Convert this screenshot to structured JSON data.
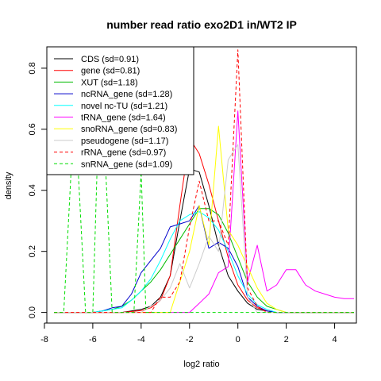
{
  "chart_data": {
    "type": "line",
    "title": "number read ratio exo2D1 in/WT2 IP",
    "xlabel": "log2 ratio",
    "ylabel": "density",
    "xlim": [
      -8,
      5
    ],
    "ylim": [
      0,
      0.87
    ],
    "xticks": [
      -8,
      -6,
      -4,
      -2,
      0,
      2,
      4
    ],
    "yticks": [
      0.0,
      0.2,
      0.4,
      0.6,
      0.8
    ],
    "xtick_labels": [
      "-8",
      "-6",
      "-4",
      "-2",
      "0",
      "2",
      "4"
    ],
    "ytick_labels": [
      "0.0",
      "0.2",
      "0.4",
      "0.6",
      "0.8"
    ],
    "legend_position": "top-left",
    "series": [
      {
        "name": "CDS (sd=0.91)",
        "color": "#000000",
        "dash": "solid",
        "x": [
          -7.6,
          -7.2,
          -6.8,
          -6.4,
          -6.0,
          -5.6,
          -5.2,
          -4.8,
          -4.4,
          -4.0,
          -3.6,
          -3.2,
          -2.8,
          -2.4,
          -2.0,
          -1.6,
          -1.2,
          -0.8,
          -0.4,
          0.0,
          0.4,
          0.8,
          1.2,
          1.6,
          2.0,
          2.4,
          2.8,
          3.2,
          3.6,
          4.0,
          4.4,
          4.8
        ],
        "y": [
          0,
          0,
          0,
          0,
          0,
          0,
          0,
          0,
          0.005,
          0.01,
          0.02,
          0.05,
          0.12,
          0.3,
          0.47,
          0.46,
          0.35,
          0.22,
          0.12,
          0.07,
          0.03,
          0.01,
          0.005,
          0,
          0,
          0,
          0,
          0,
          0,
          0,
          0,
          0
        ]
      },
      {
        "name": "gene (sd=0.81)",
        "color": "#ff0000",
        "dash": "solid",
        "x": [
          -7.6,
          -7.2,
          -6.8,
          -6.4,
          -6.0,
          -5.6,
          -5.2,
          -4.8,
          -4.4,
          -4.0,
          -3.6,
          -3.2,
          -2.8,
          -2.4,
          -2.0,
          -1.6,
          -1.2,
          -0.8,
          -0.4,
          0.0,
          0.4,
          0.8,
          1.2,
          1.6,
          2.0,
          2.4,
          2.8,
          3.2,
          3.6,
          4.0,
          4.4,
          4.8
        ],
        "y": [
          0,
          0,
          0,
          0,
          0,
          0,
          0,
          0,
          0.003,
          0.006,
          0.015,
          0.04,
          0.12,
          0.35,
          0.57,
          0.52,
          0.42,
          0.3,
          0.18,
          0.09,
          0.04,
          0.015,
          0.005,
          0,
          0,
          0,
          0,
          0,
          0,
          0,
          0,
          0
        ]
      },
      {
        "name": "XUT (sd=1.18)",
        "color": "#00bb00",
        "dash": "solid",
        "x": [
          -7.6,
          -7.2,
          -6.8,
          -6.4,
          -6.0,
          -5.6,
          -5.2,
          -4.8,
          -4.4,
          -4.0,
          -3.6,
          -3.2,
          -2.8,
          -2.4,
          -2.0,
          -1.6,
          -1.2,
          -0.8,
          -0.4,
          0.0,
          0.4,
          0.8,
          1.2,
          1.6,
          2.0,
          2.4,
          2.8,
          3.2,
          3.6,
          4.0,
          4.4,
          4.8
        ],
        "y": [
          0,
          0,
          0,
          0,
          0,
          0.005,
          0.01,
          0.02,
          0.04,
          0.07,
          0.1,
          0.14,
          0.19,
          0.24,
          0.29,
          0.34,
          0.34,
          0.32,
          0.26,
          0.18,
          0.1,
          0.05,
          0.02,
          0.01,
          0,
          0,
          0,
          0,
          0,
          0,
          0,
          0
        ]
      },
      {
        "name": "ncRNA_gene (sd=1.28)",
        "color": "#0000cc",
        "dash": "solid",
        "x": [
          -7.6,
          -7.2,
          -6.8,
          -6.4,
          -6.0,
          -5.6,
          -5.2,
          -4.8,
          -4.4,
          -4.0,
          -3.6,
          -3.2,
          -2.8,
          -2.4,
          -2.0,
          -1.6,
          -1.2,
          -0.8,
          -0.4,
          0.0,
          0.4,
          0.8,
          1.2,
          1.6,
          2.0,
          2.4,
          2.8,
          3.2,
          3.6,
          4.0,
          4.4,
          4.8
        ],
        "y": [
          0,
          0,
          0,
          0,
          0,
          0.005,
          0.015,
          0.02,
          0.06,
          0.13,
          0.17,
          0.21,
          0.28,
          0.29,
          0.3,
          0.35,
          0.21,
          0.23,
          0.21,
          0.15,
          0.05,
          0.02,
          0.005,
          0,
          0,
          0,
          0,
          0,
          0,
          0,
          0,
          0
        ]
      },
      {
        "name": "novel nc-TU (sd=1.21)",
        "color": "#00ffff",
        "dash": "solid",
        "x": [
          -7.6,
          -7.2,
          -6.8,
          -6.4,
          -6.0,
          -5.6,
          -5.2,
          -4.8,
          -4.4,
          -4.0,
          -3.6,
          -3.2,
          -2.8,
          -2.4,
          -2.0,
          -1.6,
          -1.2,
          -0.8,
          -0.4,
          0.0,
          0.4,
          0.8,
          1.2,
          1.6,
          2.0,
          2.4,
          2.8,
          3.2,
          3.6,
          4.0,
          4.4,
          4.8
        ],
        "y": [
          0,
          0,
          0,
          0,
          0,
          0.005,
          0.01,
          0.015,
          0.04,
          0.07,
          0.11,
          0.17,
          0.24,
          0.3,
          0.32,
          0.33,
          0.31,
          0.27,
          0.2,
          0.12,
          0.06,
          0.025,
          0.01,
          0,
          0,
          0,
          0,
          0,
          0,
          0,
          0,
          0
        ]
      },
      {
        "name": "tRNA_gene (sd=1.64)",
        "color": "#ff00ff",
        "dash": "solid",
        "x": [
          -7.6,
          -7.2,
          -6.8,
          -6.4,
          -6.0,
          -5.6,
          -5.2,
          -4.8,
          -4.4,
          -4.0,
          -3.6,
          -3.2,
          -2.8,
          -2.4,
          -2.0,
          -1.6,
          -1.2,
          -0.8,
          -0.4,
          0.0,
          0.4,
          0.8,
          1.2,
          1.6,
          2.0,
          2.4,
          2.8,
          3.2,
          3.6,
          4.0,
          4.4,
          4.8
        ],
        "y": [
          0,
          0,
          0,
          0,
          0,
          0,
          0,
          0,
          0,
          0,
          0,
          0,
          0,
          0,
          0,
          0.03,
          0.06,
          0.13,
          0.15,
          0.66,
          0.1,
          0.22,
          0.07,
          0.09,
          0.14,
          0.14,
          0.09,
          0.07,
          0.06,
          0.05,
          0.045,
          0.045
        ]
      },
      {
        "name": "snoRNA_gene (sd=0.83)",
        "color": "#ffff00",
        "dash": "solid",
        "x": [
          -7.6,
          -7.2,
          -6.8,
          -6.4,
          -6.0,
          -5.6,
          -5.2,
          -4.8,
          -4.4,
          -4.0,
          -3.6,
          -3.2,
          -2.8,
          -2.4,
          -2.0,
          -1.6,
          -1.2,
          -0.8,
          -0.4,
          0.0,
          0.4,
          0.8,
          1.2,
          1.6,
          2.0,
          2.4,
          2.8,
          3.2,
          3.6,
          4.0,
          4.4,
          4.8
        ],
        "y": [
          0,
          0,
          0,
          0,
          0,
          0,
          0,
          0,
          0,
          0,
          0,
          0,
          0,
          0.1,
          0.2,
          0.35,
          0.22,
          0.61,
          0.27,
          0.22,
          0.15,
          0.08,
          0.03,
          0.01,
          0,
          0,
          0,
          0,
          0,
          0,
          0,
          0
        ]
      },
      {
        "name": "pseudogene (sd=1.17)",
        "color": "#cccccc",
        "dash": "solid",
        "x": [
          -7.6,
          -7.2,
          -6.8,
          -6.4,
          -6.0,
          -5.6,
          -5.2,
          -4.8,
          -4.4,
          -4.0,
          -3.6,
          -3.2,
          -2.8,
          -2.4,
          -2.0,
          -1.6,
          -1.2,
          -0.8,
          -0.4,
          0.0,
          0.4,
          0.8,
          1.2,
          1.6,
          2.0,
          2.4,
          2.8,
          3.2,
          3.6,
          4.0,
          4.4,
          4.8
        ],
        "y": [
          0,
          0,
          0,
          0,
          0,
          0,
          0,
          0,
          0,
          0,
          0.02,
          0.04,
          0.08,
          0.16,
          0.08,
          0.16,
          0.25,
          0.2,
          0.5,
          0.55,
          0.05,
          0,
          0,
          0,
          0,
          0,
          0,
          0,
          0,
          0,
          0,
          0
        ]
      },
      {
        "name": "rRNA_gene (sd=0.97)",
        "color": "#ff0000",
        "dash": "dashed",
        "x": [
          -7.6,
          -7.2,
          -6.8,
          -6.4,
          -6.0,
          -5.6,
          -5.2,
          -4.8,
          -4.4,
          -4.0,
          -3.6,
          -3.2,
          -2.8,
          -2.4,
          -2.0,
          -1.6,
          -1.2,
          -0.8,
          -0.4,
          0.0,
          0.4,
          0.8,
          1.2,
          1.6,
          2.0,
          2.4,
          2.8,
          3.2,
          3.6,
          4.0,
          4.4,
          4.8
        ],
        "y": [
          0,
          0,
          0,
          0,
          0,
          0,
          0,
          0,
          0,
          0,
          0,
          0.05,
          0.05,
          0.1,
          0.28,
          0.43,
          0.3,
          0.3,
          0.22,
          0.86,
          0.08,
          0.02,
          0,
          0,
          0,
          0,
          0,
          0,
          0,
          0,
          0,
          0
        ]
      },
      {
        "name": "snRNA_gene (sd=1.09)",
        "color": "#00dd00",
        "dash": "dashed",
        "x": [
          -7.6,
          -7.2,
          -6.9,
          -6.6,
          -6.3,
          -6.0,
          -5.8,
          -5.5,
          -5.2,
          -5.0,
          -4.8,
          -4.3,
          -4.0,
          -3.8,
          -3.5,
          -3.0,
          -2.5,
          -2.0,
          -1.5,
          -1.0,
          -0.5,
          0.0,
          0.5,
          1.0,
          2.0,
          3.0,
          4.0,
          4.8
        ],
        "y": [
          0,
          0,
          0.46,
          0.46,
          0,
          0,
          0.53,
          0.53,
          0,
          0,
          0,
          0,
          0.46,
          0,
          0,
          0,
          0,
          0,
          0,
          0,
          0,
          0,
          0,
          0,
          0,
          0,
          0,
          0
        ]
      }
    ]
  }
}
